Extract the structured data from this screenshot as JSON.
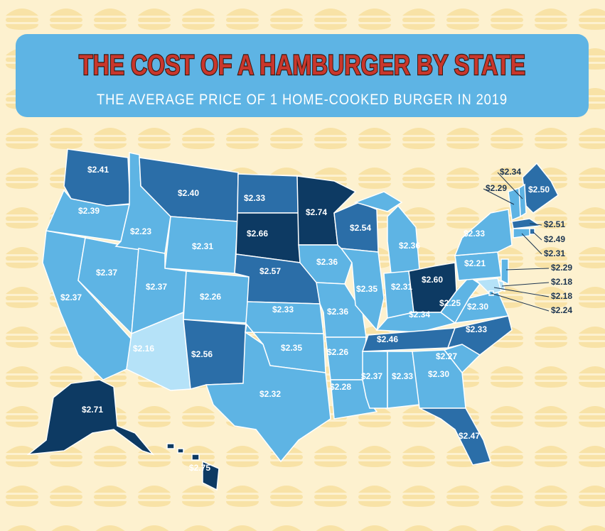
{
  "title": "THE COST OF A HAMBURGER BY STATE",
  "subtitle": "THE AVERAGE PRICE OF 1 HOME-COOKED BURGER IN 2019",
  "states": [
    {
      "label": "$2.41",
      "color": "#2b6ea8"
    },
    {
      "label": "$2.39",
      "color": "#5eb4e4"
    },
    {
      "label": "$2.37",
      "color": "#5eb4e4"
    },
    {
      "label": "$2.37",
      "color": "#5eb4e4"
    },
    {
      "label": "$2.23",
      "color": "#5eb4e4"
    },
    {
      "label": "$2.40",
      "color": "#2b6ea8"
    },
    {
      "label": "$2.31",
      "color": "#5eb4e4"
    },
    {
      "label": "$2.37",
      "color": "#5eb4e4"
    },
    {
      "label": "$2.26",
      "color": "#5eb4e4"
    },
    {
      "label": "$2.16",
      "color": "#b5e2f8"
    },
    {
      "label": "$2.56",
      "color": "#2b6ea8"
    },
    {
      "label": "$2.33",
      "color": "#2b6ea8"
    },
    {
      "label": "$2.66",
      "color": "#0d3a63"
    },
    {
      "label": "$2.57",
      "color": "#2b6ea8"
    },
    {
      "label": "$2.33",
      "color": "#5eb4e4"
    },
    {
      "label": "$2.35",
      "color": "#5eb4e4"
    },
    {
      "label": "$2.32",
      "color": "#5eb4e4"
    },
    {
      "label": "$2.74",
      "color": "#0d3a63"
    },
    {
      "label": "$2.36",
      "color": "#5eb4e4"
    },
    {
      "label": "$2.36",
      "color": "#5eb4e4"
    },
    {
      "label": "$2.26",
      "color": "#5eb4e4"
    },
    {
      "label": "$2.28",
      "color": "#5eb4e4"
    },
    {
      "label": "$2.54",
      "color": "#2b6ea8"
    },
    {
      "label": "$2.35",
      "color": "#5eb4e4"
    },
    {
      "label": "$2.36",
      "color": "#5eb4e4"
    },
    {
      "label": "$2.31",
      "color": "#5eb4e4"
    },
    {
      "label": "$2.60",
      "color": "#0d3a63"
    },
    {
      "label": "$2.34",
      "color": "#5eb4e4"
    },
    {
      "label": "$2.46",
      "color": "#2b6ea8"
    },
    {
      "label": "$2.37",
      "color": "#5eb4e4"
    },
    {
      "label": "$2.33",
      "color": "#5eb4e4"
    },
    {
      "label": "$2.30",
      "color": "#5eb4e4"
    },
    {
      "label": "$2.47",
      "color": "#2b6ea8"
    },
    {
      "label": "$2.27",
      "color": "#5eb4e4"
    },
    {
      "label": "$2.33",
      "color": "#2b6ea8"
    },
    {
      "label": "$2.30",
      "color": "#5eb4e4"
    },
    {
      "label": "$2.25",
      "color": "#5eb4e4"
    },
    {
      "label": "$2.21",
      "color": "#5eb4e4"
    },
    {
      "label": "$2.33",
      "color": "#5eb4e4"
    },
    {
      "label": "$2.50",
      "color": "#2b6ea8"
    },
    {
      "label": "$2.34",
      "color": "#5eb4e4"
    },
    {
      "label": "$2.29",
      "color": "#5eb4e4"
    },
    {
      "label": "$2.51",
      "color": "#2b6ea8"
    },
    {
      "label": "$2.49",
      "color": "#2b6ea8"
    },
    {
      "label": "$2.31",
      "color": "#5eb4e4"
    },
    {
      "label": "$2.29",
      "color": "#5eb4e4"
    },
    {
      "label": "$2.18",
      "color": "#b5e2f8"
    },
    {
      "label": "$2.18",
      "color": "#b5e2f8"
    },
    {
      "label": "$2.24",
      "color": "#5eb4e4"
    },
    {
      "label": "$2.71",
      "color": "#0d3a63"
    },
    {
      "label": "$2.75",
      "color": "#0d3a63"
    }
  ]
}
